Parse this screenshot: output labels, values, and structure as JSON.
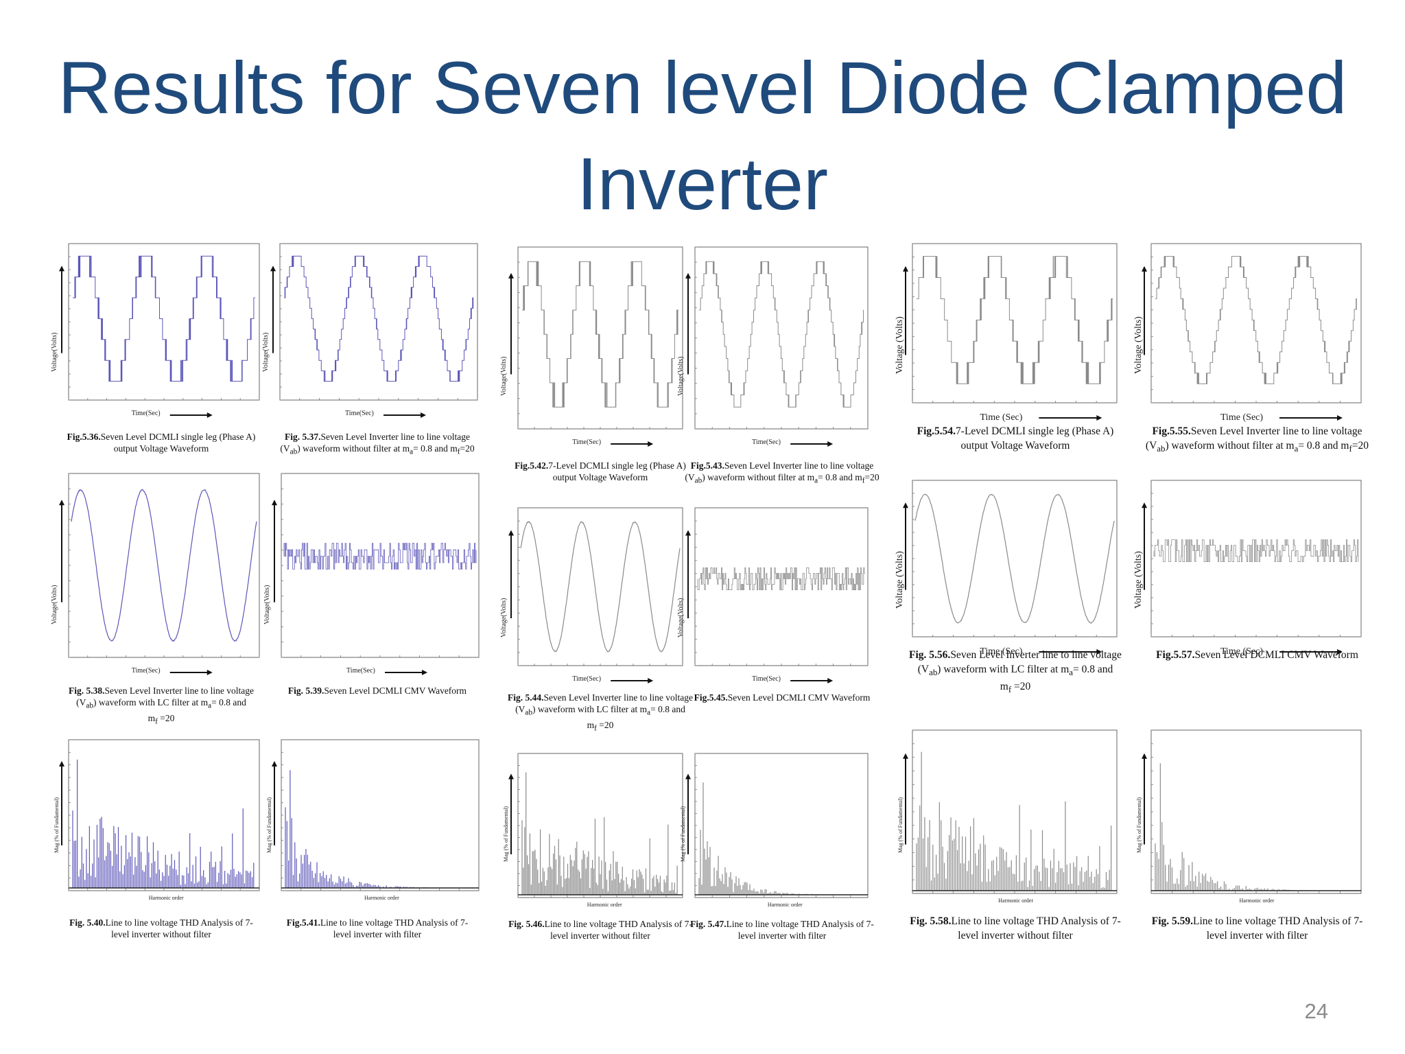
{
  "slide": {
    "title_line1": "Results for Seven level Diode Clamped",
    "title_line2": "Inverter",
    "page_number": "24"
  },
  "labels": {
    "time_sec": "Time(Sec)",
    "time_sec_spaced": "Time (Sec)",
    "voltage_volts": "Voltage(Volts)",
    "voltage_volts_spaced": "Voltage (Volts)",
    "harmonic_order": "Harmonic order",
    "mag_pct": "Mag (% of Fundamental)"
  },
  "figures": [
    {
      "id": "5.36",
      "kind": "phase",
      "num": "Fig.5.36.",
      "text1": "Seven Level DCMLI single leg (Phase A)",
      "text2": "output Voltage Waveform"
    },
    {
      "id": "5.37",
      "kind": "line",
      "num": "Fig. 5.37.",
      "text1": "Seven Level Inverter line to line voltage",
      "text2": "waveform without filter at m",
      "sub_a": "a",
      "sub_f": "f",
      "sub_ab": "ab",
      "eq1": "= 0.8 and m",
      "eq2": "=20"
    },
    {
      "id": "5.38",
      "kind": "sine",
      "num": "Fig. 5.38.",
      "text1": "Seven Level Inverter line to line voltage",
      "text2": "waveform with LC filter at m",
      "eq1": "= 0.8 and",
      "text3": "m",
      "eq2": " =20"
    },
    {
      "id": "5.39",
      "kind": "cmv",
      "num": "Fig. 5.39.",
      "text1": "Seven Level DCMLI CMV Waveform"
    },
    {
      "id": "5.40",
      "kind": "thd",
      "num": "Fig. 5.40.",
      "text1": "Line to line voltage THD Analysis of 7-",
      "text2": "level inverter without filter"
    },
    {
      "id": "5.41",
      "kind": "thd",
      "num": "Fig.5.41.",
      "text1": "Line to line voltage THD Analysis of 7-",
      "text2": "level inverter with filter"
    },
    {
      "id": "5.42",
      "kind": "phase",
      "num": "Fig.5.42.",
      "text1": "7-Level DCMLI single leg (Phase A)",
      "text2": "output Voltage Waveform"
    },
    {
      "id": "5.43",
      "kind": "line",
      "num": "Fig.5.43.",
      "text1": "Seven Level Inverter line to line voltage",
      "text2": "waveform without filter at m",
      "eq1": "= 0.8 and m",
      "eq2": "=20"
    },
    {
      "id": "5.44",
      "kind": "sine",
      "num": "Fig. 5.44.",
      "text1": "Seven Level Inverter line to line voltage",
      "text2": "waveform with LC filter at m",
      "eq1": "= 0.8 and",
      "text3": "m",
      "eq2": " =20"
    },
    {
      "id": "5.45",
      "kind": "cmv",
      "num": "Fig.5.45.",
      "text1": "Seven Level DCMLI CMV Waveform"
    },
    {
      "id": "5.46",
      "kind": "thd",
      "num": "Fig. 5.46.",
      "text1": "Line to line voltage THD Analysis of 7-",
      "text2": "level inverter without filter"
    },
    {
      "id": "5.47",
      "kind": "thd",
      "num": "Fig. 5.47.",
      "text1": "Line to line voltage THD Analysis of 7-",
      "text2": "level inverter with filter"
    },
    {
      "id": "5.54",
      "kind": "phase",
      "num": "Fig.5.54.",
      "text1": "7-Level DCMLI single leg (Phase A)",
      "text2": "output Voltage Waveform"
    },
    {
      "id": "5.55",
      "kind": "line",
      "num": "Fig.5.55.",
      "text1": "Seven Level Inverter line to line voltage",
      "text2": "waveform without filter at m",
      "eq1": "= 0.8 and m",
      "eq2": "=20"
    },
    {
      "id": "5.56",
      "kind": "sine",
      "num": "Fig. 5.56.",
      "text1": "Seven Level Inverter line to line voltage",
      "text2": "waveform with LC filter at m",
      "eq1": "= 0.8 and",
      "text3": "m",
      "eq2": " =20"
    },
    {
      "id": "5.57",
      "kind": "cmv",
      "num": "Fig.5.57.",
      "text1": "Seven Level DCMLI CMV Waveform"
    },
    {
      "id": "5.58",
      "kind": "thd",
      "num": "Fig. 5.58.",
      "text1": "Line to line voltage THD Analysis of 7-",
      "text2": "level inverter without filter"
    },
    {
      "id": "5.59",
      "kind": "thd",
      "num": "Fig. 5.59.",
      "text1": "Line to line voltage THD Analysis of 7-",
      "text2": "level inverter with filter"
    }
  ],
  "colors": {
    "title": "#1f4a7c",
    "purple": "#5b56b8",
    "gray": "#8a8a8a",
    "page_number": "#8a8a8a"
  }
}
